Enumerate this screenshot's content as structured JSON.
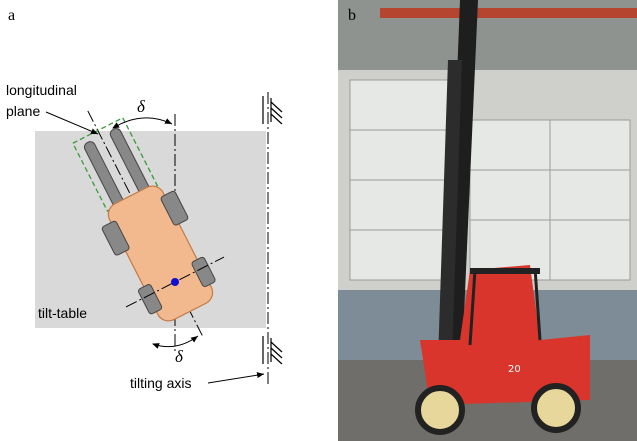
{
  "panel_a": {
    "label": "a",
    "longitudinal_plane": [
      "longitudinal",
      "plane"
    ],
    "angle_top": "δ",
    "angle_bottom": "δ",
    "tilt_table": "tilt-table",
    "tilting_axis": "tilting axis"
  },
  "panel_b": {
    "label": "b",
    "forklift_number": "20"
  }
}
